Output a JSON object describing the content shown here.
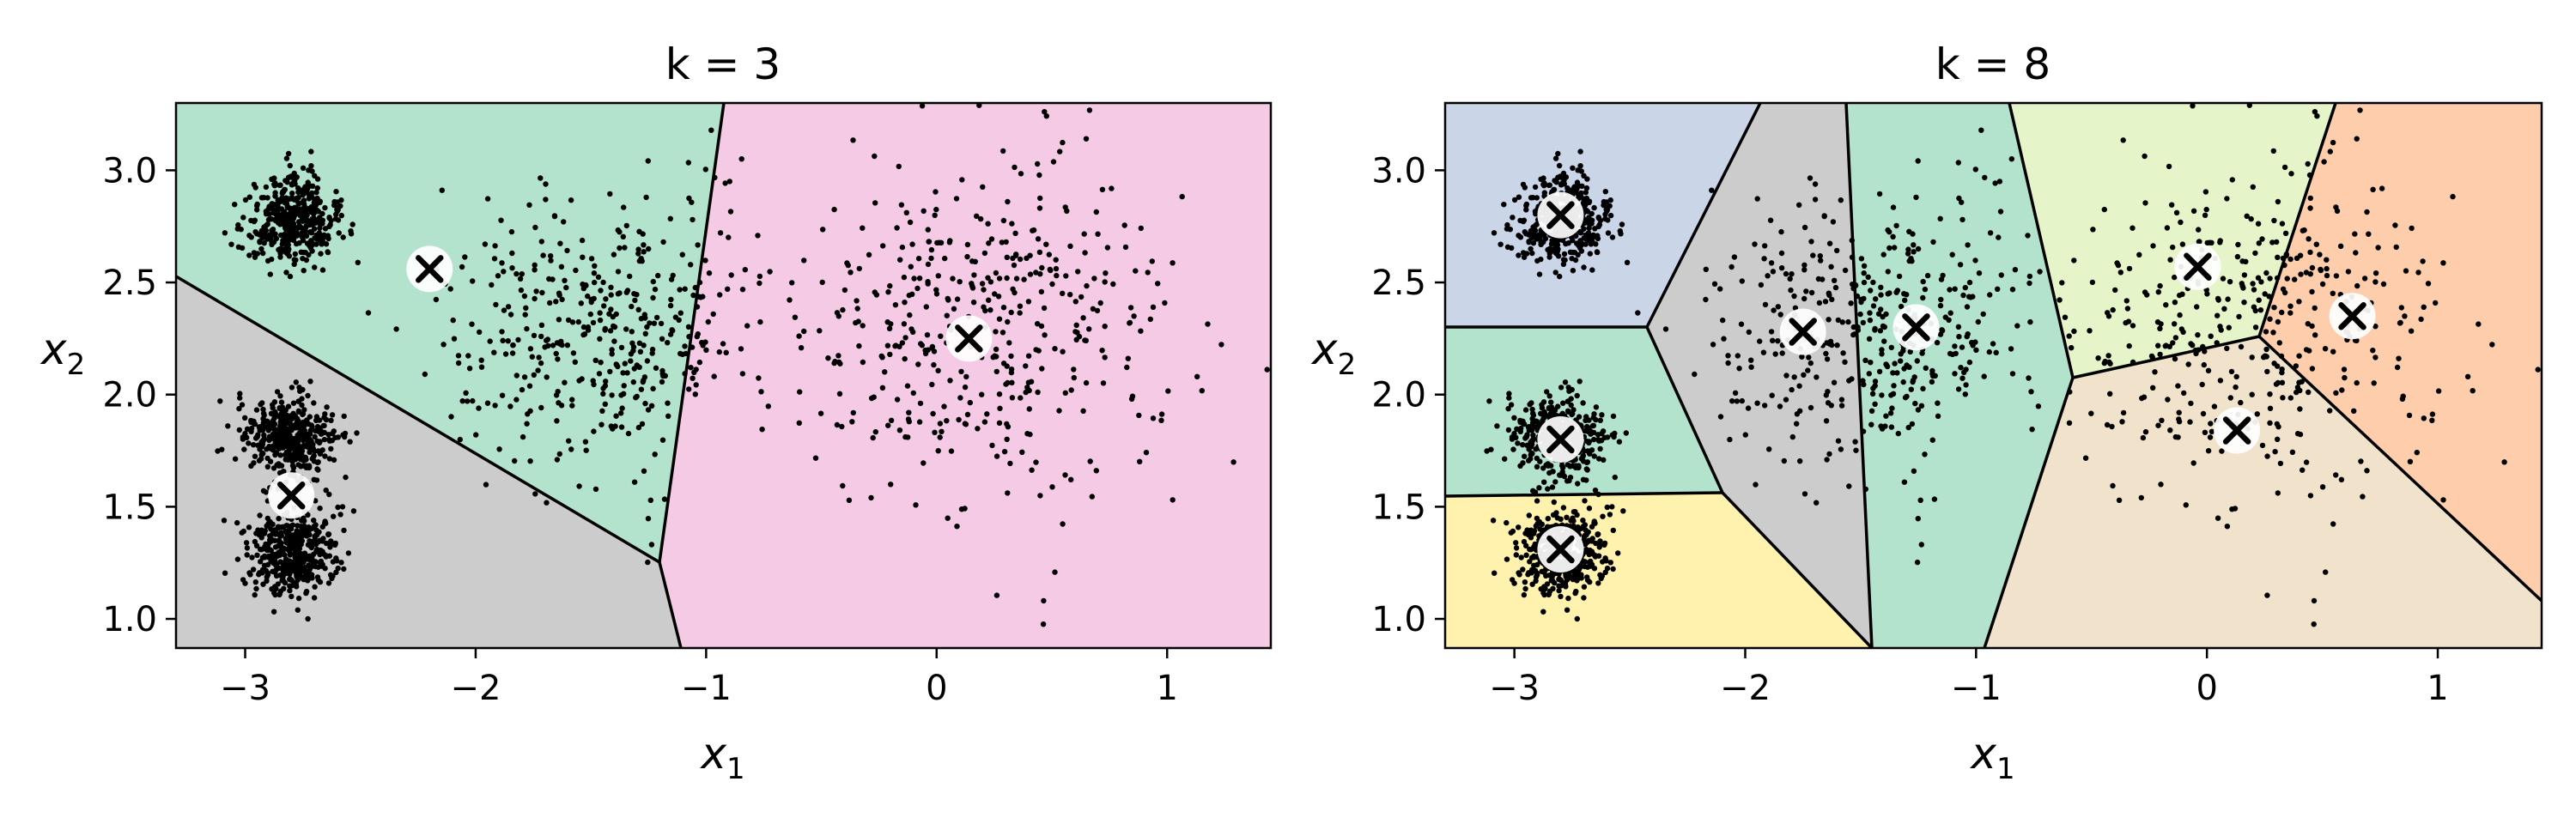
{
  "chart_data": [
    {
      "type": "scatter",
      "title": "k = 3",
      "xlabel": "x1",
      "ylabel": "x2",
      "xlim": [
        -3.3,
        1.45
      ],
      "ylim": [
        0.87,
        3.3
      ],
      "xticks": [
        -3,
        -2,
        -1,
        0,
        1
      ],
      "xtick_labels": [
        "−3",
        "−2",
        "−1",
        "0",
        "1"
      ],
      "yticks": [
        1.0,
        1.5,
        2.0,
        2.5,
        3.0
      ],
      "ytick_labels": [
        "1.0",
        "1.5",
        "2.0",
        "2.5",
        "3.0"
      ],
      "grid": false,
      "legend": "none",
      "centroids": [
        [
          -2.2,
          2.56
        ],
        [
          -2.8,
          1.55
        ],
        [
          0.14,
          2.25
        ]
      ],
      "region_colors": [
        "#b3e2cd",
        "#cccccc",
        "#f4cae4"
      ],
      "clusters": [
        {
          "center": [
            -2.8,
            2.78
          ],
          "spread": [
            0.1,
            0.1
          ],
          "count": 420
        },
        {
          "center": [
            -2.8,
            1.8
          ],
          "spread": [
            0.1,
            0.1
          ],
          "count": 420
        },
        {
          "center": [
            -2.8,
            1.3
          ],
          "spread": [
            0.1,
            0.1
          ],
          "count": 420
        },
        {
          "center": [
            -1.45,
            2.3
          ],
          "spread": [
            0.35,
            0.3
          ],
          "count": 420
        },
        {
          "center": [
            0.2,
            2.3
          ],
          "spread": [
            0.4,
            0.4
          ],
          "count": 420
        }
      ]
    },
    {
      "type": "scatter",
      "title": "k = 8",
      "xlabel": "x1",
      "ylabel": "x2",
      "xlim": [
        -3.3,
        1.45
      ],
      "ylim": [
        0.87,
        3.3
      ],
      "xticks": [
        -3,
        -2,
        -1,
        0,
        1
      ],
      "xtick_labels": [
        "−3",
        "−2",
        "−1",
        "0",
        "1"
      ],
      "yticks": [
        1.0,
        1.5,
        2.0,
        2.5,
        3.0
      ],
      "ytick_labels": [
        "1.0",
        "1.5",
        "2.0",
        "2.5",
        "3.0"
      ],
      "grid": false,
      "legend": "none",
      "centroids": [
        [
          -2.8,
          2.8
        ],
        [
          -2.8,
          1.8
        ],
        [
          -2.8,
          1.31
        ],
        [
          -1.75,
          2.28
        ],
        [
          -1.26,
          2.3
        ],
        [
          -0.04,
          2.57
        ],
        [
          0.63,
          2.35
        ],
        [
          0.13,
          1.84
        ]
      ],
      "region_colors": [
        "#cbd5e8",
        "#b3e2cd",
        "#fff2ae",
        "#cccccc",
        "#b3e2cd",
        "#e6f5c9",
        "#fdcdac",
        "#f1e2cc"
      ],
      "clusters": [
        {
          "center": [
            -2.8,
            2.78
          ],
          "spread": [
            0.1,
            0.1
          ],
          "count": 420
        },
        {
          "center": [
            -2.8,
            1.8
          ],
          "spread": [
            0.1,
            0.1
          ],
          "count": 420
        },
        {
          "center": [
            -2.8,
            1.3
          ],
          "spread": [
            0.1,
            0.1
          ],
          "count": 420
        },
        {
          "center": [
            -1.45,
            2.3
          ],
          "spread": [
            0.35,
            0.3
          ],
          "count": 420
        },
        {
          "center": [
            0.2,
            2.3
          ],
          "spread": [
            0.4,
            0.4
          ],
          "count": 420
        }
      ]
    }
  ]
}
